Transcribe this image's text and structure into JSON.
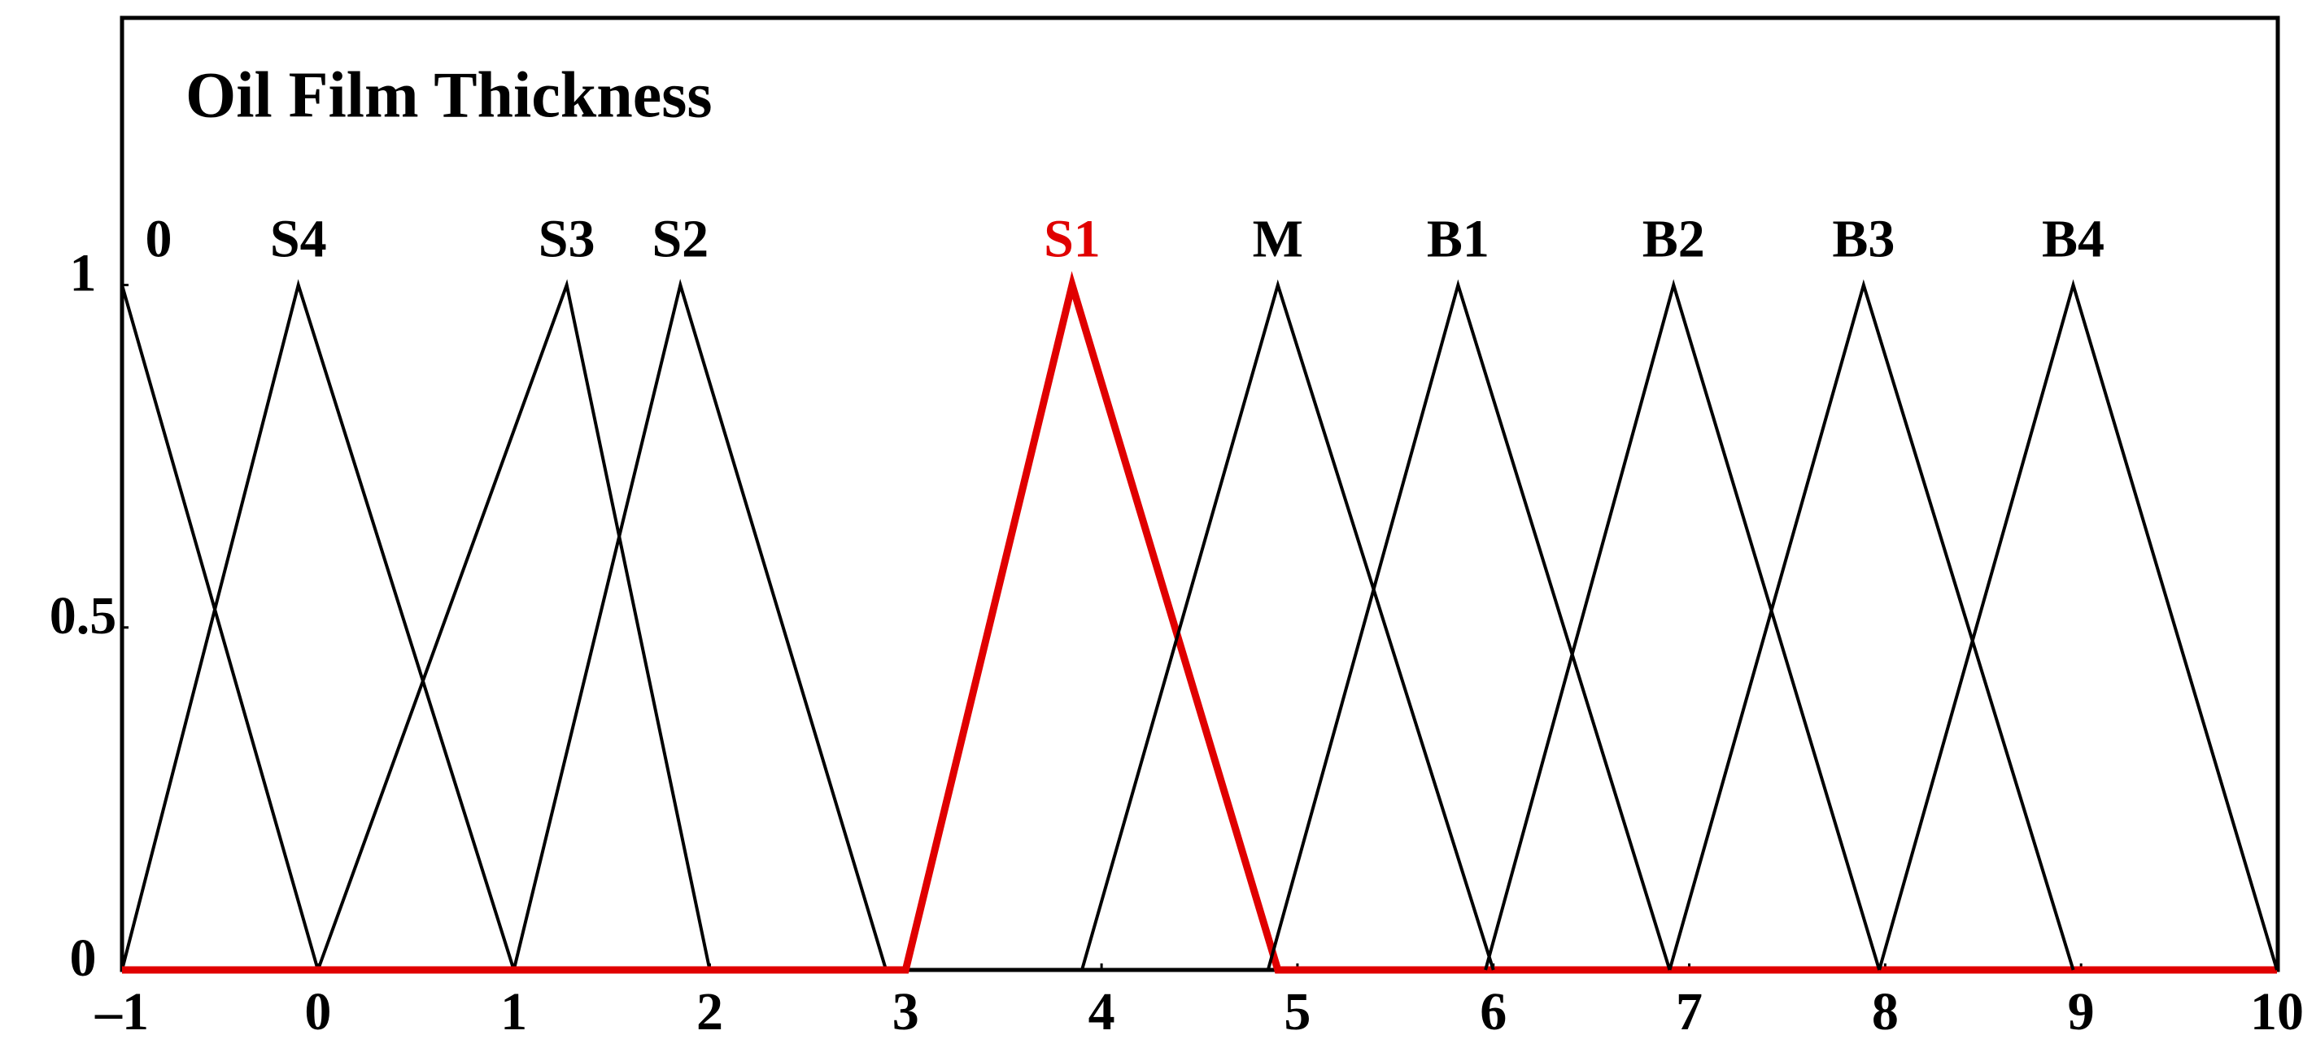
{
  "chart_data": {
    "type": "line",
    "title": "Oil Film Thickness",
    "xlim": [
      -1,
      10
    ],
    "ylim": [
      0,
      1.39
    ],
    "xticks": [
      {
        "value": -1,
        "label": "–1"
      },
      0,
      1,
      2,
      3,
      4,
      5,
      6,
      7,
      8,
      9,
      10
    ],
    "yticks": [
      0,
      0.5,
      1
    ],
    "series": [
      {
        "name": "0",
        "color": "#000000",
        "x": [
          -1,
          0
        ],
        "values": [
          1,
          0
        ]
      },
      {
        "name": "S4",
        "color": "#000000",
        "x": [
          -1,
          -0.1,
          1
        ],
        "values": [
          0,
          1,
          0
        ]
      },
      {
        "name": "S3",
        "color": "#000000",
        "x": [
          0,
          1.27,
          2
        ],
        "values": [
          0,
          1,
          0
        ]
      },
      {
        "name": "S2",
        "color": "#000000",
        "x": [
          1,
          1.85,
          2.9
        ],
        "values": [
          0,
          1,
          0
        ]
      },
      {
        "name": "S1",
        "color": "#e00000",
        "x": [
          -1,
          3,
          3.85,
          4.9,
          10
        ],
        "values": [
          0,
          0,
          1,
          0,
          0
        ]
      },
      {
        "name": "M",
        "color": "#000000",
        "x": [
          3.9,
          4.9,
          6
        ],
        "values": [
          0,
          1,
          0
        ]
      },
      {
        "name": "B1",
        "color": "#000000",
        "x": [
          4.85,
          5.82,
          6.9
        ],
        "values": [
          0,
          1,
          0
        ]
      },
      {
        "name": "B2",
        "color": "#000000",
        "x": [
          5.96,
          6.92,
          7.97
        ],
        "values": [
          0,
          1,
          0
        ]
      },
      {
        "name": "B3",
        "color": "#000000",
        "x": [
          6.9,
          7.89,
          8.96
        ],
        "values": [
          0,
          1,
          0
        ]
      },
      {
        "name": "B4",
        "color": "#000000",
        "x": [
          7.97,
          8.96,
          10
        ],
        "values": [
          0,
          1,
          0
        ]
      }
    ]
  }
}
